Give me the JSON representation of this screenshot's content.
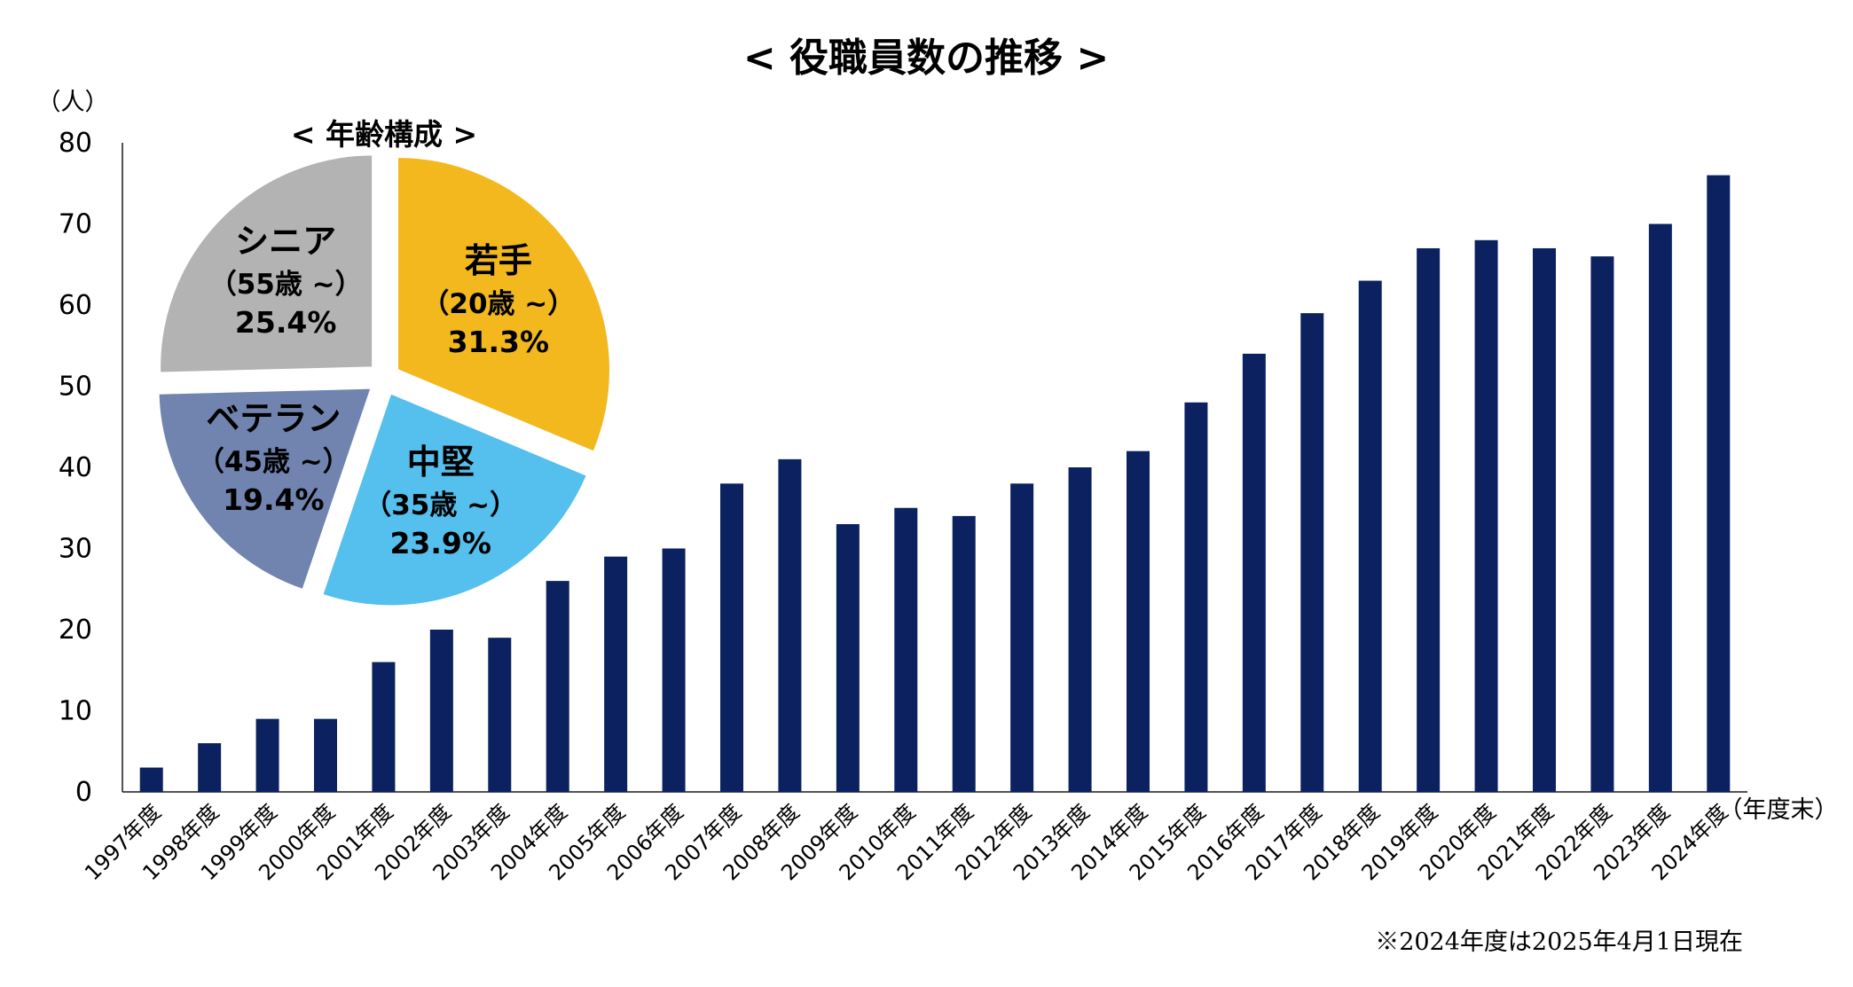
{
  "title": "< 役職員数の推移 >",
  "notes": {
    "unit_y": "（人）",
    "unit_x": "（年度末）",
    "footnote": "※2024年度は2025年4月1日現在"
  },
  "colors": {
    "bar": "#0c2260",
    "axis": "#1a1a1a",
    "young": "#f2b81d",
    "mid": "#55bfed",
    "veteran": "#7184af",
    "senior": "#b3b3b3"
  },
  "chart_data": [
    {
      "type": "bar",
      "categories": [
        "1997年度",
        "1998年度",
        "1999年度",
        "2000年度",
        "2001年度",
        "2002年度",
        "2003年度",
        "2004年度",
        "2005年度",
        "2006年度",
        "2007年度",
        "2008年度",
        "2009年度",
        "2010年度",
        "2011年度",
        "2012年度",
        "2013年度",
        "2014年度",
        "2015年度",
        "2016年度",
        "2017年度",
        "2018年度",
        "2019年度",
        "2020年度",
        "2021年度",
        "2022年度",
        "2023年度",
        "2024年度"
      ],
      "values": [
        3,
        6,
        9,
        9,
        16,
        20,
        19,
        26,
        29,
        30,
        38,
        41,
        33,
        35,
        34,
        38,
        40,
        42,
        48,
        54,
        59,
        63,
        67,
        68,
        67,
        66,
        70,
        76
      ],
      "title": "< 役職員数の推移 >",
      "ylabel": "（人）",
      "xlabel": "（年度末）",
      "ylim": [
        0,
        80
      ],
      "yticks": [
        0,
        10,
        20,
        30,
        40,
        50,
        60,
        70,
        80
      ],
      "grid": false
    },
    {
      "type": "pie",
      "title": "< 年齢構成 >",
      "slices": [
        {
          "name": "若手",
          "age": "（20歳 ~）",
          "label": "31.3%",
          "value": 31.3,
          "color": "#f2b81d"
        },
        {
          "name": "中堅",
          "age": "（35歳 ~）",
          "label": "23.9%",
          "value": 23.9,
          "color": "#55bfed"
        },
        {
          "name": "ベテラン",
          "age": "（45歳 ~）",
          "label": "19.4%",
          "value": 19.4,
          "color": "#7184af"
        },
        {
          "name": "シニア",
          "age": "（55歳 ~）",
          "label": "25.4%",
          "value": 25.4,
          "color": "#b3b3b3"
        }
      ]
    }
  ]
}
